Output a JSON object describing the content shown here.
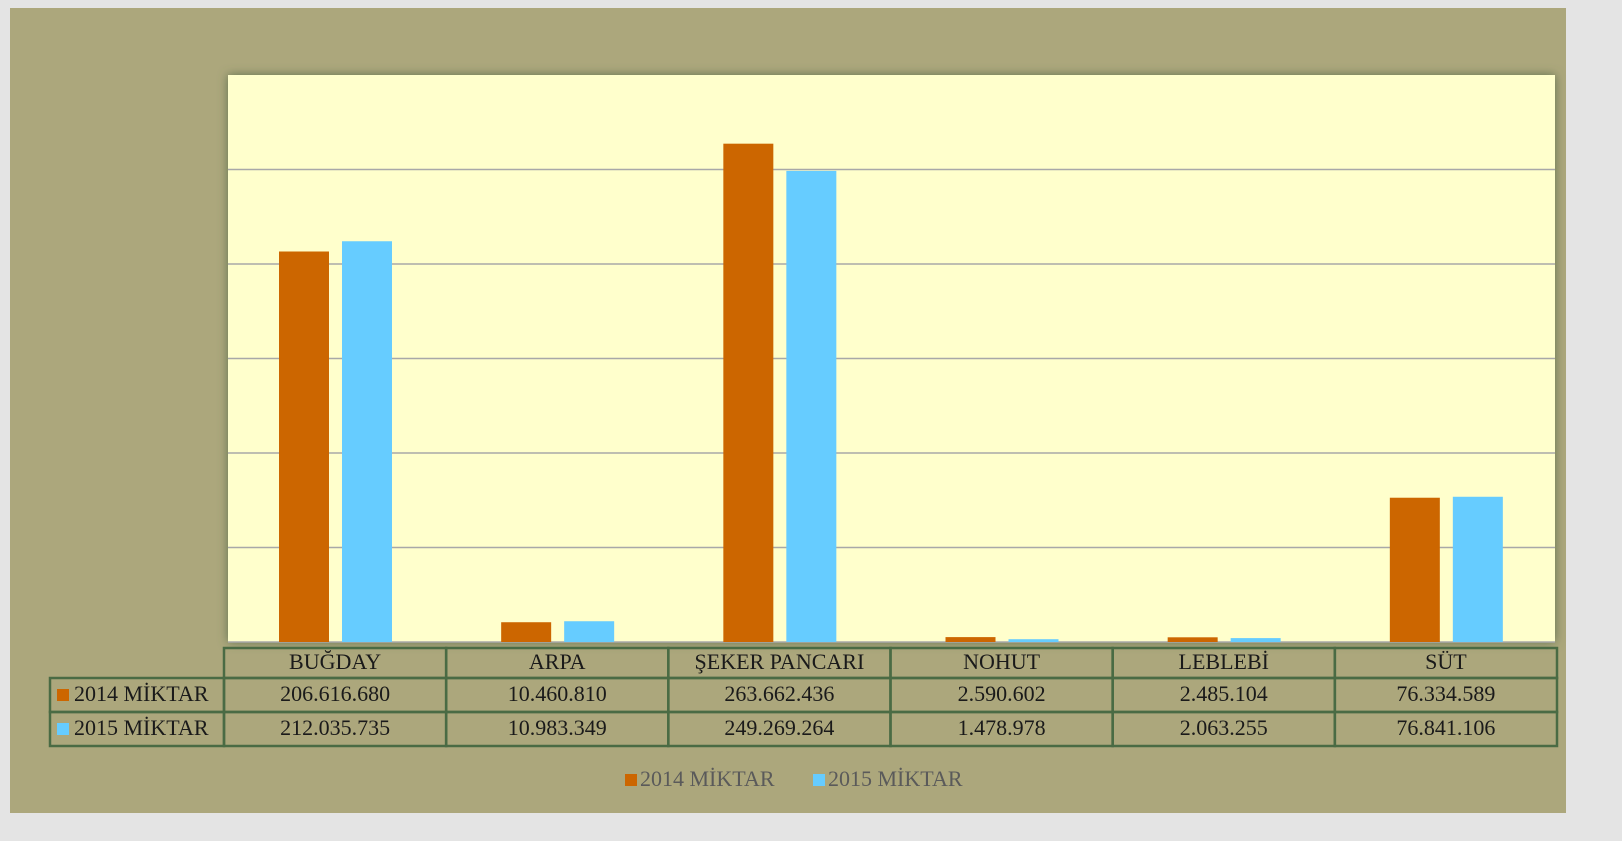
{
  "chart_data": {
    "type": "bar",
    "categories": [
      "BUĞDAY",
      "ARPA",
      "ŞEKER PANCARI",
      "NOHUT",
      "LEBLEBİ",
      "SÜT"
    ],
    "series": [
      {
        "name": "2014 MİKTAR",
        "color": "#cc6600",
        "values": [
          206616680,
          10460810,
          263662436,
          2590602,
          2485104,
          76334589
        ],
        "value_labels": [
          "206.616.680",
          "10.460.810",
          "263.662.436",
          "2.590.602",
          "2.485.104",
          "76.334.589"
        ]
      },
      {
        "name": "2015 MİKTAR",
        "color": "#66ccff",
        "values": [
          212035735,
          10983349,
          249269264,
          1478978,
          2063255,
          76841106
        ],
        "value_labels": [
          "212.035.735",
          "10.983.349",
          "249.269.264",
          "1.478.978",
          "2.063.255",
          "76.841.106"
        ]
      }
    ],
    "ylim": [
      0,
      300000000
    ],
    "yticks": [
      0,
      50000000,
      100000000,
      150000000,
      200000000,
      250000000,
      300000000
    ],
    "grid": true,
    "legend": "bottom"
  }
}
